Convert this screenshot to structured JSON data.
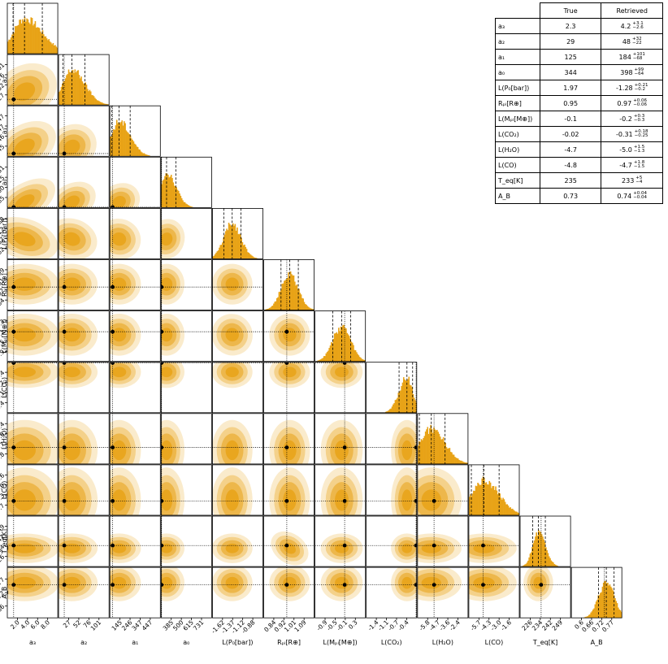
{
  "chart_data": {
    "type": "corner",
    "colors": {
      "fill": "#e8a317",
      "marker": "#000000",
      "line": "#000000"
    },
    "parameters": [
      {
        "key": "a3",
        "label": "a₃",
        "true": 2.3,
        "range": [
          1.2,
          10.0
        ],
        "xticks": [
          "2.0",
          "4.0",
          "6.0",
          "8.0"
        ],
        "yticks": [],
        "quantiles": [
          2.2,
          4.2,
          7.3
        ]
      },
      {
        "key": "a2",
        "label": "a₂",
        "true": 29,
        "range": [
          15,
          140
        ],
        "xticks": [
          "27",
          "52",
          "76",
          "101"
        ],
        "yticks": [
          "101",
          "76",
          "52",
          "27"
        ],
        "quantiles": [
          26,
          48,
          80
        ]
      },
      {
        "key": "a1",
        "label": "a₁",
        "true": 125,
        "range": [
          100,
          560
        ],
        "xticks": [
          "145",
          "246",
          "347",
          "447"
        ],
        "yticks": [
          "447",
          "347",
          "246",
          "145"
        ],
        "quantiles": [
          116,
          184,
          285
        ]
      },
      {
        "key": "a0",
        "label": "a₀",
        "true": 344,
        "range": [
          340,
          880
        ],
        "xticks": [
          "385",
          "500",
          "615",
          "731"
        ],
        "yticks": [
          "731",
          "615",
          "500",
          "385"
        ],
        "quantiles": [
          334,
          398,
          497
        ]
      },
      {
        "key": "P0",
        "label": "L(P₀[bar])",
        "true": 1.97,
        "range": [
          -1.75,
          -0.55
        ],
        "xticks": [
          "-1.62",
          "-1.37",
          "-1.12",
          "-0.88"
        ],
        "yticks": [
          "-0.88",
          "-1.12",
          "-1.37",
          "-1.62"
        ],
        "quantiles": [
          -1.48,
          -1.28,
          -1.07
        ]
      },
      {
        "key": "Rpl",
        "label": "Rₚₗ[R⊕]",
        "true": 0.95,
        "range": [
          0.79,
          1.14
        ],
        "xticks": [
          "0.84",
          "0.92",
          "1.01",
          "1.09"
        ],
        "yticks": [
          "1.09",
          "1.01",
          "0.92",
          "0.84"
        ],
        "quantiles": [
          0.91,
          0.97,
          1.03
        ]
      },
      {
        "key": "Mpl",
        "label": "L(Mₚₗ[M⊕])",
        "true": -0.1,
        "range": [
          -1.1,
          0.6
        ],
        "xticks": [
          "-0.9",
          "-0.5",
          "-0.1",
          "0.3"
        ],
        "yticks": [
          "0.3",
          "-0.1",
          "-0.5",
          "-0.9"
        ],
        "quantiles": [
          -0.5,
          -0.2,
          0.1
        ]
      },
      {
        "key": "CO2",
        "label": "L(CO₂)",
        "true": -0.02,
        "range": [
          -1.6,
          0.0
        ],
        "xticks": [
          "-1.4",
          "-1.1",
          "-0.7",
          "-0.4"
        ],
        "yticks": [
          "-0.4",
          "-0.7",
          "-1.1",
          "-1.4"
        ],
        "quantiles": [
          -0.56,
          -0.31,
          -0.13
        ]
      },
      {
        "key": "H2O",
        "label": "L(H₂O)",
        "true": -4.7,
        "range": [
          -6.5,
          -1.0
        ],
        "xticks": [
          "-5.8",
          "-4.7",
          "-3.6",
          "-2.4"
        ],
        "yticks": [
          "-2.4",
          "-3.6",
          "-4.7",
          "-5.8"
        ],
        "quantiles": [
          -6.3,
          -5.0,
          -3.5
        ]
      },
      {
        "key": "CO",
        "label": "L(CO)",
        "true": -4.8,
        "range": [
          -6.5,
          -0.5
        ],
        "xticks": [
          "-5.7",
          "-4.3",
          "-3.0",
          "-1.6"
        ],
        "yticks": [
          "-1.6",
          "-3.0",
          "-4.3",
          "-5.7"
        ],
        "quantiles": [
          -6.2,
          -4.7,
          -2.9
        ]
      },
      {
        "key": "Teq",
        "label": "T_eq[K]",
        "true": 235,
        "range": [
          220,
          256
        ],
        "xticks": [
          "226",
          "234",
          "242",
          "249"
        ],
        "yticks": [
          "249",
          "242",
          "234",
          "226"
        ],
        "quantiles": [
          229,
          233,
          238
        ]
      },
      {
        "key": "AB",
        "label": "A_B",
        "true": 0.73,
        "range": [
          0.56,
          0.82
        ],
        "xticks": [
          "0.6",
          "0.66",
          "0.72",
          "0.77"
        ],
        "yticks": [
          "0.77",
          "0.72",
          "0.66"
        ],
        "quantiles": [
          0.7,
          0.74,
          0.78
        ]
      }
    ],
    "ylabels": [
      "a₂",
      "a₁",
      "a₀",
      "L(P₀[bar])",
      "Rₚₗ[R⊕]",
      "L(Mₚₗ[M⊕])",
      "L(CO₂)",
      "L(H₂O)",
      "L(CO)",
      "T_eq[K]",
      "A_B"
    ]
  },
  "table": {
    "header_true": "True",
    "header_retrieved": "Retrieved",
    "rows": [
      {
        "label": "a₃",
        "true": "2.3",
        "retrieved": "4.2",
        "plus": "+3.1",
        "minus": "−2.6"
      },
      {
        "label": "a₂",
        "true": "29",
        "retrieved": "48",
        "plus": "+32",
        "minus": "−22"
      },
      {
        "label": "a₁",
        "true": "125",
        "retrieved": "184",
        "plus": "+101",
        "minus": "−68"
      },
      {
        "label": "a₀",
        "true": "344",
        "retrieved": "398",
        "plus": "+99",
        "minus": "−64"
      },
      {
        "label": "L(P₀[bar])",
        "true": "1.97",
        "retrieved": "-1.28",
        "plus": "+0.21",
        "minus": "−0.2"
      },
      {
        "label": "Rₚₗ[R⊕]",
        "true": "0.95",
        "retrieved": "0.97",
        "plus": "+0.06",
        "minus": "−0.06"
      },
      {
        "label": "L(Mₚₗ[M⊕])",
        "true": "-0.1",
        "retrieved": "-0.2",
        "plus": "+0.3",
        "minus": "−0.3"
      },
      {
        "label": "L(CO₂)",
        "true": "-0.02",
        "retrieved": "-0.31",
        "plus": "+0.18",
        "minus": "−0.25"
      },
      {
        "label": "L(H₂O)",
        "true": "-4.7",
        "retrieved": "-5.0",
        "plus": "+1.5",
        "minus": "−1.3"
      },
      {
        "label": "L(CO)",
        "true": "-4.8",
        "retrieved": "-4.7",
        "plus": "+1.8",
        "minus": "−1.5"
      },
      {
        "label": "T_eq[K]",
        "true": "235",
        "retrieved": "233",
        "plus": "+5",
        "minus": "−4"
      },
      {
        "label": "A_B",
        "true": "0.73",
        "retrieved": "0.74",
        "plus": "+0.04",
        "minus": "−0.04"
      }
    ]
  }
}
